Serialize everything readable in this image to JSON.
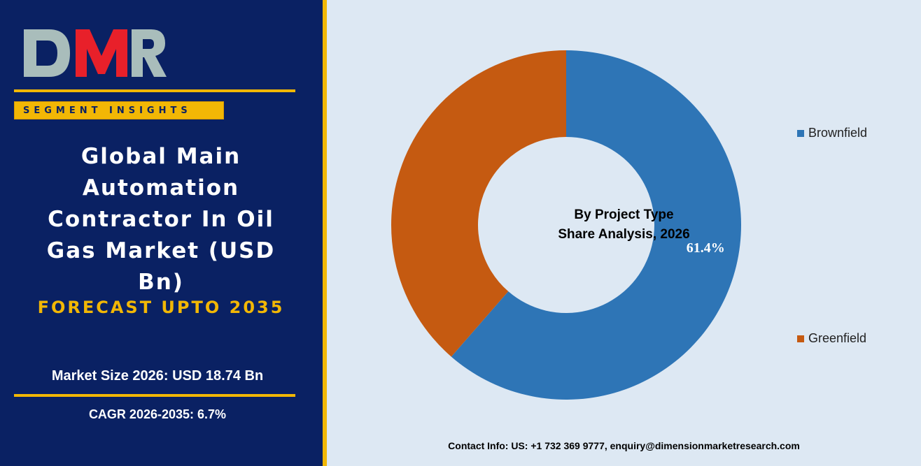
{
  "brand": {
    "logo_text": "DMR",
    "segment_label": "SEGMENT INSIGHTS",
    "colors": {
      "navy": "#0a2163",
      "gold": "#f2b705",
      "logo_red": "#e8202a",
      "logo_gray": "#a9bdbb"
    }
  },
  "report": {
    "title": "Global Main Automation Contractor In Oil Gas Market (USD Bn)",
    "forecast": "FORECAST UPTO 2035",
    "market_size": "Market Size 2026: USD 18.74 Bn",
    "cagr": "CAGR 2026-2035: 6.7%"
  },
  "chart_data": {
    "type": "pie",
    "donut": true,
    "center_title_line1": "By Project Type",
    "center_title_line2": "Share Analysis, 2026",
    "legend_position": "right",
    "slices": [
      {
        "label": "Brownfield",
        "value": 61.4,
        "data_label": "61.4%",
        "color": "#2e75b6"
      },
      {
        "label": "Greenfield",
        "value": 38.6,
        "data_label": "",
        "color": "#c55a11"
      }
    ]
  },
  "footer": {
    "contact": "Contact Info: US: +1 732 369 9777, enquiry@dimensionmarketresearch.com"
  }
}
